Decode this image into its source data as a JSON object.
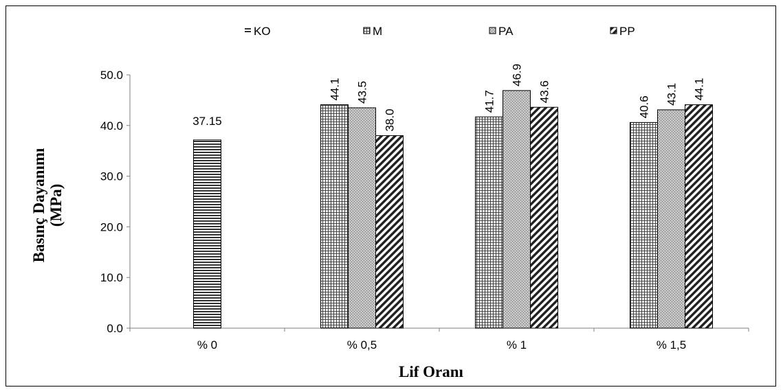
{
  "chart_data": {
    "type": "bar",
    "categories": [
      "% 0",
      "% 0,5",
      "% 1",
      "% 1,5"
    ],
    "series": [
      {
        "name": "KO",
        "values": [
          37.15,
          null,
          null,
          null
        ],
        "labels": [
          "37.15",
          "",
          "",
          ""
        ]
      },
      {
        "name": "M",
        "values": [
          null,
          44.1,
          41.7,
          40.6
        ],
        "labels": [
          "",
          "44.1",
          "41.7",
          "40.6"
        ]
      },
      {
        "name": "PA",
        "values": [
          null,
          43.5,
          46.9,
          43.1
        ],
        "labels": [
          "",
          "43.5",
          "46.9",
          "43.1"
        ]
      },
      {
        "name": "PP",
        "values": [
          null,
          38.0,
          43.6,
          44.1
        ],
        "labels": [
          "",
          "38.0",
          "43.6",
          "44.1"
        ]
      }
    ],
    "xlabel": "Lif Oranı",
    "ylabel_line1": "Basınç Dayanımı",
    "ylabel_line2": "(MPa)",
    "ylim": [
      0,
      50
    ],
    "yticks": [
      "0.0",
      "10.0",
      "20.0",
      "30.0",
      "40.0",
      "50.0"
    ],
    "grid": false,
    "legend_position": "top"
  }
}
